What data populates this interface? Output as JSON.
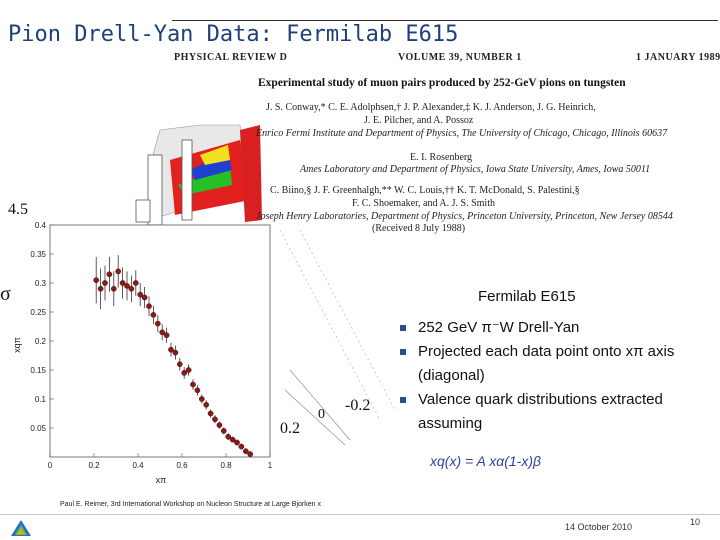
{
  "slide": {
    "title": "Pion Drell-Yan Data:  Fermilab E615"
  },
  "paper": {
    "journal": "PHYSICAL REVIEW D",
    "volume": "VOLUME 39, NUMBER 1",
    "date": "1 JANUARY 1989",
    "title": "Experimental study of muon pairs produced by 252-GeV pions on tungsten",
    "lines": [
      "J. S. Conway,* C. E. Adolphsen,† J. P. Alexander,‡ K. J. Anderson, J. G. Heinrich,",
      "J. E. Pilcher, and A. Possoz",
      "Enrico Fermi Institute and Department of Physics, The University of Chicago, Chicago, Illinois 60637",
      "E. I. Rosenberg",
      "Ames Laboratory and Department of Physics, Iowa State University, Ames, Iowa 50011",
      "C. Biino,§ J. F. Greenhalgh,** W. C. Louis,†† K. T. McDonald, S. Palestini,§",
      "F. C. Shoemaker, and A. J. S. Smith",
      "Joseph Henry Laboratories, Department of Physics, Princeton University, Princeton, New Jersey 08544",
      "(Received 8 July 1988)"
    ]
  },
  "background_3d": {
    "label_left": "4.5",
    "label_sigma": "σ",
    "label_mid": "-0.2",
    "label_low": "0.2",
    "label_zero": "0"
  },
  "colors": {
    "title": "#1f3f7a",
    "point": "#8b1a1a",
    "formula": "#2e3fa0",
    "bullet": "#2a4d8a"
  },
  "chart_data": {
    "type": "scatter",
    "xlabel": "xπ",
    "ylabel": "xqπ",
    "xlim": [
      0,
      1
    ],
    "ylim": [
      0,
      0.4
    ],
    "xticks": [
      "0",
      "0.2",
      "0.4",
      "0.6",
      "0.8",
      "1"
    ],
    "yticks": [
      "0.05",
      "0.1",
      "0.15",
      "0.2",
      "0.25",
      "0.3",
      "0.35",
      "0.4"
    ],
    "points": [
      {
        "x": 0.21,
        "y": 0.305,
        "err": 0.04
      },
      {
        "x": 0.23,
        "y": 0.29,
        "err": 0.035
      },
      {
        "x": 0.25,
        "y": 0.3,
        "err": 0.03
      },
      {
        "x": 0.27,
        "y": 0.315,
        "err": 0.03
      },
      {
        "x": 0.29,
        "y": 0.29,
        "err": 0.03
      },
      {
        "x": 0.31,
        "y": 0.32,
        "err": 0.028
      },
      {
        "x": 0.33,
        "y": 0.3,
        "err": 0.027
      },
      {
        "x": 0.35,
        "y": 0.295,
        "err": 0.025
      },
      {
        "x": 0.37,
        "y": 0.29,
        "err": 0.023
      },
      {
        "x": 0.39,
        "y": 0.3,
        "err": 0.022
      },
      {
        "x": 0.41,
        "y": 0.28,
        "err": 0.02
      },
      {
        "x": 0.43,
        "y": 0.275,
        "err": 0.018
      },
      {
        "x": 0.45,
        "y": 0.26,
        "err": 0.017
      },
      {
        "x": 0.47,
        "y": 0.245,
        "err": 0.016
      },
      {
        "x": 0.49,
        "y": 0.23,
        "err": 0.015
      },
      {
        "x": 0.51,
        "y": 0.215,
        "err": 0.014
      },
      {
        "x": 0.53,
        "y": 0.21,
        "err": 0.013
      },
      {
        "x": 0.55,
        "y": 0.185,
        "err": 0.012
      },
      {
        "x": 0.57,
        "y": 0.18,
        "err": 0.012
      },
      {
        "x": 0.59,
        "y": 0.16,
        "err": 0.011
      },
      {
        "x": 0.61,
        "y": 0.145,
        "err": 0.01
      },
      {
        "x": 0.63,
        "y": 0.15,
        "err": 0.01
      },
      {
        "x": 0.65,
        "y": 0.125,
        "err": 0.009
      },
      {
        "x": 0.67,
        "y": 0.115,
        "err": 0.009
      },
      {
        "x": 0.69,
        "y": 0.1,
        "err": 0.008
      },
      {
        "x": 0.71,
        "y": 0.09,
        "err": 0.008
      },
      {
        "x": 0.73,
        "y": 0.075,
        "err": 0.007
      },
      {
        "x": 0.75,
        "y": 0.065,
        "err": 0.007
      },
      {
        "x": 0.77,
        "y": 0.055,
        "err": 0.006
      },
      {
        "x": 0.79,
        "y": 0.045,
        "err": 0.006
      },
      {
        "x": 0.81,
        "y": 0.035,
        "err": 0.006
      },
      {
        "x": 0.83,
        "y": 0.03,
        "err": 0.005
      },
      {
        "x": 0.85,
        "y": 0.025,
        "err": 0.005
      },
      {
        "x": 0.87,
        "y": 0.018,
        "err": 0.005
      },
      {
        "x": 0.89,
        "y": 0.01,
        "err": 0.005
      },
      {
        "x": 0.91,
        "y": 0.005,
        "err": 0.005
      }
    ]
  },
  "bullets": {
    "heading": "Fermilab E615",
    "items": [
      "252 GeV π⁻W Drell-Yan",
      "Projected each data point onto xπ axis (diagonal)",
      "Valence quark distributions extracted assuming"
    ],
    "formula": "xq(x) = A xα(1-x)β"
  },
  "footer": {
    "text": "Paul E. Reimer, 3rd International Workshop on Nucleon Structure at Large Bjorken x",
    "date": "14 October 2010",
    "page": "10"
  }
}
